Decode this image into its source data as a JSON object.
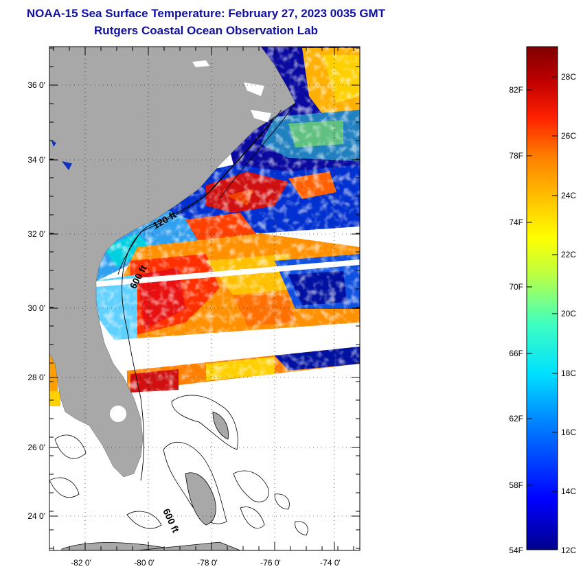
{
  "title": "NOAA-15 Sea Surface Temperature:  February 27, 2023 0035 GMT",
  "subtitle": "Rutgers Coastal Ocean Observation Lab",
  "map": {
    "lon_range": [
      -83,
      -73
    ],
    "lat_range": [
      23,
      37
    ],
    "lon_ticks": [
      "-82 0'",
      "-80 0'",
      "-78 0'",
      "-76 0'",
      "-74 0'"
    ],
    "lat_ticks": [
      "36 0'",
      "34 0'",
      "32 0'",
      "30 0'",
      "28 0'",
      "26 0'",
      "24 0'"
    ],
    "contour_labels": [
      "120 ft",
      "600 ft",
      "600 ft"
    ],
    "colors": {
      "land": "#a8a8a8",
      "cloud": "#ffffff",
      "outline": "#000000"
    }
  },
  "colorbar": {
    "fahrenheit_labels": [
      "82F",
      "78F",
      "74F",
      "70F",
      "66F",
      "62F",
      "58F",
      "54F"
    ],
    "celsius_labels": [
      "28C",
      "26C",
      "24C",
      "22C",
      "20C",
      "18C",
      "16C",
      "14C",
      "12C"
    ],
    "range_c": [
      12,
      29
    ],
    "palette": [
      "#00008c",
      "#0000ff",
      "#0080ff",
      "#00e0ff",
      "#40ffc0",
      "#c0ff40",
      "#ffff00",
      "#ffc000",
      "#ff8000",
      "#ff2000",
      "#c00000",
      "#800000"
    ]
  }
}
